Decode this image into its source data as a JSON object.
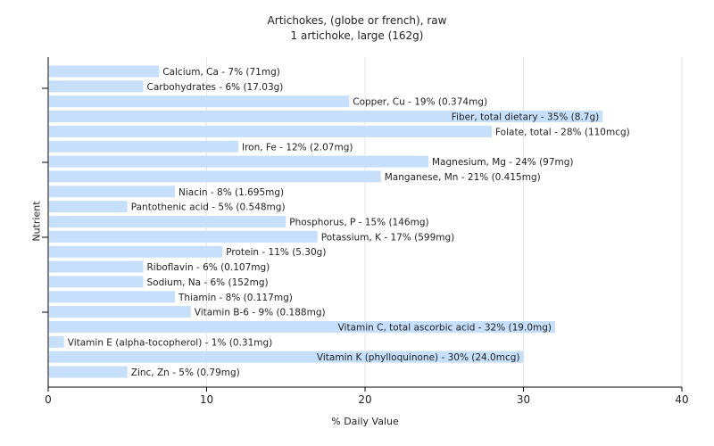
{
  "chart_data": {
    "type": "bar",
    "orientation": "horizontal",
    "title": "Artichokes, (globe or french), raw",
    "subtitle": "1 artichoke, large (162g)",
    "xlabel": "% Daily Value",
    "ylabel": "Nutrient",
    "xlim": [
      0,
      40
    ],
    "xticks": [
      0,
      10,
      20,
      30,
      40
    ],
    "grid": true,
    "bar_color": "#c6dffa",
    "categories": [
      "Calcium, Ca",
      "Carbohydrates",
      "Copper, Cu",
      "Fiber, total dietary",
      "Folate, total",
      "Iron, Fe",
      "Magnesium, Mg",
      "Manganese, Mn",
      "Niacin",
      "Pantothenic acid",
      "Phosphorus, P",
      "Potassium, K",
      "Protein",
      "Riboflavin",
      "Sodium, Na",
      "Thiamin",
      "Vitamin B-6",
      "Vitamin C, total ascorbic acid",
      "Vitamin E (alpha-tocopherol)",
      "Vitamin K (phylloquinone)",
      "Zinc, Zn"
    ],
    "values": [
      7,
      6,
      19,
      35,
      28,
      12,
      24,
      21,
      8,
      5,
      15,
      17,
      11,
      6,
      6,
      8,
      9,
      32,
      1,
      30,
      5
    ],
    "labels": [
      "Calcium, Ca - 7% (71mg)",
      "Carbohydrates - 6% (17.03g)",
      "Copper, Cu - 19% (0.374mg)",
      "Fiber, total dietary - 35% (8.7g)",
      "Folate, total - 28% (110mcg)",
      "Iron, Fe - 12% (2.07mg)",
      "Magnesium, Mg - 24% (97mg)",
      "Manganese, Mn - 21% (0.415mg)",
      "Niacin - 8% (1.695mg)",
      "Pantothenic acid - 5% (0.548mg)",
      "Phosphorus, P - 15% (146mg)",
      "Potassium, K - 17% (599mg)",
      "Protein - 11% (5.30g)",
      "Riboflavin - 6% (0.107mg)",
      "Sodium, Na - 6% (152mg)",
      "Thiamin - 8% (0.117mg)",
      "Vitamin B-6 - 9% (0.188mg)",
      "Vitamin C, total ascorbic acid - 32% (19.0mg)",
      "Vitamin E (alpha-tocopherol) - 1% (0.31mg)",
      "Vitamin K (phylloquinone) - 30% (24.0mcg)",
      "Zinc, Zn - 5% (0.79mg)"
    ]
  }
}
